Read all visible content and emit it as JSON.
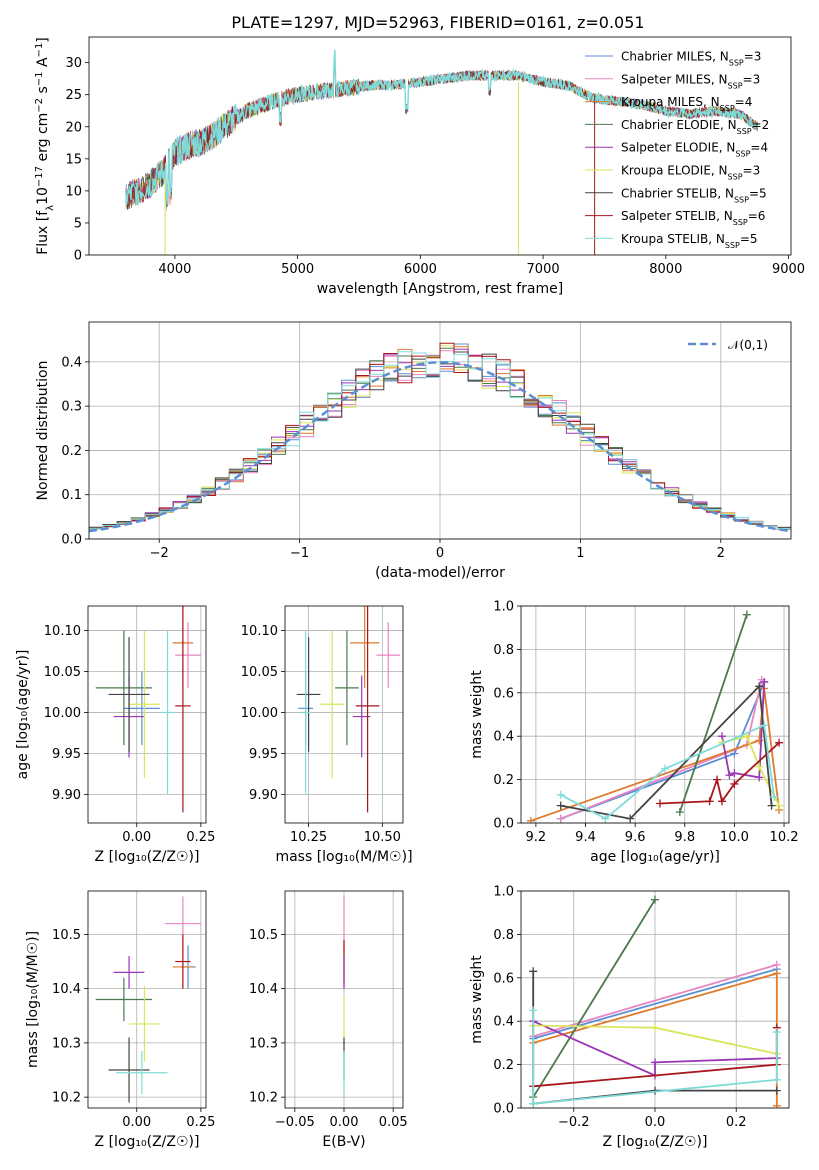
{
  "title": "PLATE=1297, MJD=52963, FIBERID=0161, z=0.051",
  "colors": {
    "Chabrier MILES": "#5b8fd4",
    "Salpeter MILES": "#e985c3",
    "Kroupa MILES": "#e07a2c",
    "Chabrier ELODIE": "#4a7a4c",
    "Salpeter ELODIE": "#9b36b4",
    "Kroupa ELODIE": "#d9e55a",
    "Chabrier STELIB": "#444444",
    "Salpeter STELIB": "#a8171b",
    "Kroupa STELIB": "#7fdbd8"
  },
  "chart_data": [
    {
      "id": "spectrum",
      "type": "line",
      "xlabel": "wavelength [Angstrom, rest frame]",
      "ylabel_parts": [
        "Flux [f",
        "λ",
        "10",
        "−17",
        " erg cm",
        "−2",
        " s",
        "−1",
        " A",
        "−1",
        "]"
      ],
      "xlim": [
        3300,
        9020
      ],
      "ylim": [
        0,
        34
      ],
      "xticks": [
        4000,
        5000,
        6000,
        7000,
        8000,
        9000
      ],
      "yticks": [
        0,
        5,
        10,
        15,
        20,
        25,
        30
      ],
      "grid": false,
      "legend_position": "right",
      "series": [
        {
          "name": "Chabrier MILES",
          "nssp": "3"
        },
        {
          "name": "Salpeter MILES",
          "nssp": "3"
        },
        {
          "name": "Kroupa MILES",
          "nssp": "4"
        },
        {
          "name": "Chabrier ELODIE",
          "nssp": "2"
        },
        {
          "name": "Salpeter ELODIE",
          "nssp": "4"
        },
        {
          "name": "Kroupa ELODIE",
          "nssp": "3"
        },
        {
          "name": "Chabrier STELIB",
          "nssp": "5"
        },
        {
          "name": "Salpeter STELIB",
          "nssp": "6"
        },
        {
          "name": "Kroupa STELIB",
          "nssp": "5"
        }
      ],
      "continuum": {
        "x": [
          3600,
          3700,
          3800,
          3900,
          4000,
          4100,
          4200,
          4300,
          4400,
          4500,
          4600,
          4800,
          5000,
          5200,
          5400,
          5600,
          5800,
          6000,
          6200,
          6400,
          6600,
          6800,
          7000,
          7200,
          7400,
          7600,
          7800,
          8000,
          8200,
          8400,
          8600,
          8750
        ],
        "y": [
          9,
          10,
          11,
          13,
          16,
          17,
          17.5,
          18.5,
          20,
          21.5,
          22.5,
          24,
          25,
          25.5,
          26,
          26.5,
          26.5,
          27,
          27.5,
          28,
          28,
          28,
          27,
          26.5,
          24.5,
          24,
          23.5,
          22.5,
          22,
          22.5,
          22,
          20
        ]
      }
    },
    {
      "id": "residuals",
      "type": "line",
      "xlabel": "(data-model)/error",
      "ylabel": "Normed distribution",
      "xlim": [
        -2.5,
        2.5
      ],
      "ylim": [
        0,
        0.49
      ],
      "xticks": [
        -2,
        -1,
        0,
        1,
        2
      ],
      "yticks": [
        0.0,
        0.1,
        0.2,
        0.3,
        0.4
      ],
      "grid": true,
      "legend_position": "top-right",
      "legend_label": "𝒩(0,1)"
    },
    {
      "id": "age_vs_Z",
      "type": "scatter",
      "xlabel": "Z [log₁₀(Z/Z☉)]",
      "ylabel": "age  [log₁₀(age/yr)]",
      "xlim": [
        -0.19,
        0.27
      ],
      "ylim": [
        9.865,
        10.13
      ],
      "xticks": [
        0.0,
        0.25
      ],
      "xticklabels": [
        "0.00",
        "0.25"
      ],
      "yticks": [
        9.9,
        9.95,
        10.0,
        10.05,
        10.1
      ],
      "grid": true,
      "points": [
        {
          "series": "Chabrier MILES",
          "x": 0.02,
          "xerr": 0.07,
          "y": 10.005,
          "yerr": 0.045
        },
        {
          "series": "Salpeter MILES",
          "x": 0.2,
          "xerr": 0.05,
          "y": 10.07,
          "yerr": 0.04
        },
        {
          "series": "Kroupa MILES",
          "x": 0.18,
          "xerr": 0.04,
          "y": 10.085,
          "yerr": 0.055
        },
        {
          "series": "Chabrier ELODIE",
          "x": -0.05,
          "xerr": 0.11,
          "y": 10.03,
          "yerr": 0.07
        },
        {
          "series": "Salpeter ELODIE",
          "x": -0.03,
          "xerr": 0.06,
          "y": 9.995,
          "yerr": 0.05
        },
        {
          "series": "Kroupa ELODIE",
          "x": 0.03,
          "xerr": 0.06,
          "y": 10.01,
          "yerr": 0.09
        },
        {
          "series": "Chabrier STELIB",
          "x": -0.03,
          "xerr": 0.08,
          "y": 10.022,
          "yerr": 0.07
        },
        {
          "series": "Salpeter STELIB",
          "x": 0.18,
          "xerr": 0.03,
          "y": 10.008,
          "yerr": 0.13
        },
        {
          "series": "Kroupa STELIB",
          "x": 0.12,
          "xerr": 0.03,
          "y": 10.0,
          "yerr": 0.1
        }
      ]
    },
    {
      "id": "age_vs_mass",
      "type": "scatter",
      "xlabel": "mass [log₁₀(M/M☉)]",
      "xlim": [
        10.17,
        10.57
      ],
      "ylim": [
        9.865,
        10.13
      ],
      "xticks": [
        10.25,
        10.5
      ],
      "xticklabels": [
        "10.25",
        "10.50"
      ],
      "yticks": [
        9.9,
        9.95,
        10.0,
        10.05,
        10.1
      ],
      "grid": true,
      "points": [
        {
          "series": "Chabrier MILES",
          "x": 10.24,
          "xerr": 0.025,
          "y": 10.005,
          "yerr": 0.045
        },
        {
          "series": "Salpeter MILES",
          "x": 10.52,
          "xerr": 0.04,
          "y": 10.07,
          "yerr": 0.04
        },
        {
          "series": "Kroupa MILES",
          "x": 10.44,
          "xerr": 0.05,
          "y": 10.085,
          "yerr": 0.055
        },
        {
          "series": "Chabrier ELODIE",
          "x": 10.38,
          "xerr": 0.04,
          "y": 10.03,
          "yerr": 0.07
        },
        {
          "series": "Salpeter ELODIE",
          "x": 10.43,
          "xerr": 0.03,
          "y": 9.995,
          "yerr": 0.05
        },
        {
          "series": "Kroupa ELODIE",
          "x": 10.33,
          "xerr": 0.04,
          "y": 10.01,
          "yerr": 0.09
        },
        {
          "series": "Chabrier STELIB",
          "x": 10.25,
          "xerr": 0.04,
          "y": 10.022,
          "yerr": 0.07
        },
        {
          "series": "Salpeter STELIB",
          "x": 10.45,
          "xerr": 0.04,
          "y": 10.008,
          "yerr": 0.13
        },
        {
          "series": "Kroupa STELIB",
          "x": 10.24,
          "xerr": 0.02,
          "y": 10.0,
          "yerr": 0.1
        }
      ]
    },
    {
      "id": "weight_vs_age",
      "type": "line",
      "xlabel": "age  [log₁₀(age/yr)]",
      "ylabel": "mass weight",
      "xlim": [
        9.14,
        10.22
      ],
      "ylim": [
        0,
        1.0
      ],
      "xticks": [
        9.2,
        9.4,
        9.6,
        9.8,
        10.0,
        10.2
      ],
      "xticklabels": [
        "9.2",
        "9.4",
        "9.6",
        "9.8",
        "10.0",
        "10.2"
      ],
      "yticks": [
        0.0,
        0.2,
        0.4,
        0.6,
        0.8,
        1.0
      ],
      "grid": true,
      "series": [
        {
          "name": "Chabrier MILES",
          "x": [
            9.3,
            10.0,
            10.12
          ],
          "y": [
            0.02,
            0.32,
            0.65
          ]
        },
        {
          "name": "Salpeter MILES",
          "x": [
            9.3,
            10.05,
            10.11
          ],
          "y": [
            0.02,
            0.36,
            0.66
          ]
        },
        {
          "name": "Kroupa MILES",
          "x": [
            9.18,
            10.1,
            10.12,
            10.18
          ],
          "y": [
            0.01,
            0.38,
            0.62,
            0.06
          ]
        },
        {
          "name": "Chabrier ELODIE",
          "x": [
            9.78,
            10.05
          ],
          "y": [
            0.05,
            0.96
          ]
        },
        {
          "name": "Salpeter ELODIE",
          "x": [
            9.95,
            9.98,
            10.0,
            10.1,
            10.12
          ],
          "y": [
            0.4,
            0.22,
            0.23,
            0.21,
            0.65
          ]
        },
        {
          "name": "Kroupa ELODIE",
          "x": [
            9.95,
            10.05,
            10.1,
            10.18
          ],
          "y": [
            0.37,
            0.4,
            0.26,
            0.08
          ]
        },
        {
          "name": "Chabrier STELIB",
          "x": [
            9.3,
            9.58,
            10.1,
            10.15
          ],
          "y": [
            0.08,
            0.02,
            0.63,
            0.08
          ]
        },
        {
          "name": "Salpeter STELIB",
          "x": [
            9.7,
            9.9,
            9.93,
            9.95,
            10.0,
            10.18
          ],
          "y": [
            0.09,
            0.1,
            0.2,
            0.1,
            0.18,
            0.37
          ]
        },
        {
          "name": "Kroupa STELIB",
          "x": [
            9.3,
            9.48,
            9.72,
            10.12,
            10.16
          ],
          "y": [
            0.13,
            0.02,
            0.25,
            0.45,
            0.12
          ]
        }
      ]
    },
    {
      "id": "mass_vs_Z",
      "type": "scatter",
      "xlabel": "Z [log₁₀(Z/Z☉)]",
      "ylabel": "mass [log₁₀(M/M☉)]",
      "xlim": [
        -0.19,
        0.27
      ],
      "ylim": [
        10.18,
        10.58
      ],
      "xticks": [
        0.0,
        0.25
      ],
      "xticklabels": [
        "0.00",
        "0.25"
      ],
      "yticks": [
        10.2,
        10.3,
        10.4,
        10.5
      ],
      "grid": true,
      "points": [
        {
          "series": "Chabrier MILES",
          "x": 0.2,
          "xerr": 0.03,
          "y": 10.44,
          "yerr": 0.04
        },
        {
          "series": "Salpeter MILES",
          "x": 0.18,
          "xerr": 0.07,
          "y": 10.52,
          "yerr": 0.05
        },
        {
          "series": "Kroupa MILES",
          "x": 0.18,
          "xerr": 0.04,
          "y": 10.44,
          "yerr": 0.04
        },
        {
          "series": "Chabrier ELODIE",
          "x": -0.05,
          "xerr": 0.11,
          "y": 10.38,
          "yerr": 0.04
        },
        {
          "series": "Salpeter ELODIE",
          "x": -0.03,
          "xerr": 0.06,
          "y": 10.43,
          "yerr": 0.03
        },
        {
          "series": "Kroupa ELODIE",
          "x": 0.03,
          "xerr": 0.06,
          "y": 10.335,
          "yerr": 0.07
        },
        {
          "series": "Chabrier STELIB",
          "x": -0.03,
          "xerr": 0.08,
          "y": 10.25,
          "yerr": 0.06
        },
        {
          "series": "Salpeter STELIB",
          "x": 0.18,
          "xerr": 0.03,
          "y": 10.45,
          "yerr": 0.05
        },
        {
          "series": "Kroupa STELIB",
          "x": 0.02,
          "xerr": 0.1,
          "y": 10.245,
          "yerr": 0.04
        }
      ]
    },
    {
      "id": "mass_vs_EBV",
      "type": "scatter",
      "xlabel": "E(B-V)",
      "xlim": [
        -0.06,
        0.06
      ],
      "ylim": [
        10.18,
        10.58
      ],
      "xticks": [
        -0.05,
        0.0,
        0.05
      ],
      "xticklabels": [
        "−0.05",
        "0.00",
        "0.05"
      ],
      "yticks": [
        10.2,
        10.3,
        10.4,
        10.5
      ],
      "grid": true,
      "points": [
        {
          "series": "Salpeter MILES",
          "x": 0.0,
          "y": 10.52,
          "yerr": 0.05
        },
        {
          "series": "Kroupa MILES",
          "x": 0.0,
          "y": 10.44,
          "yerr": 0.04
        },
        {
          "series": "Salpeter STELIB",
          "x": 0.0,
          "y": 10.45,
          "yerr": 0.04
        },
        {
          "series": "Salpeter ELODIE",
          "x": 0.0,
          "y": 10.43,
          "yerr": 0.03
        },
        {
          "series": "Kroupa ELODIE",
          "x": 0.0,
          "y": 10.335,
          "yerr": 0.05
        },
        {
          "series": "Chabrier STELIB",
          "x": 0.0,
          "y": 10.27,
          "yerr": 0.04
        },
        {
          "series": "Kroupa STELIB",
          "x": 0.0,
          "y": 10.245,
          "yerr": 0.04
        }
      ]
    },
    {
      "id": "weight_vs_Z",
      "type": "line",
      "xlabel": "Z [log₁₀(Z/Z☉)]",
      "ylabel": "mass weight",
      "xlim": [
        -0.33,
        0.33
      ],
      "ylim": [
        0,
        1.0
      ],
      "xticks": [
        -0.2,
        0.0,
        0.2
      ],
      "xticklabels": [
        "−0.2",
        "0.0",
        "0.2"
      ],
      "yticks": [
        0.0,
        0.2,
        0.4,
        0.6,
        0.8,
        1.0
      ],
      "grid": true,
      "series": [
        {
          "name": "Chabrier MILES",
          "x": [
            -0.3,
            0.3
          ],
          "y": [
            0.32,
            0.64
          ]
        },
        {
          "name": "Salpeter MILES",
          "x": [
            -0.3,
            0.3
          ],
          "y": [
            0.33,
            0.66
          ]
        },
        {
          "name": "Kroupa MILES",
          "x": [
            -0.3,
            0.3,
            0.3
          ],
          "y": [
            0.3,
            0.62,
            0.01
          ]
        },
        {
          "name": "Chabrier ELODIE",
          "x": [
            -0.3,
            0.0
          ],
          "y": [
            0.05,
            0.96
          ]
        },
        {
          "name": "Salpeter ELODIE",
          "x": [
            -0.3,
            0.0,
            0.0,
            0.3
          ],
          "y": [
            0.4,
            0.15,
            0.21,
            0.23
          ]
        },
        {
          "name": "Kroupa ELODIE",
          "x": [
            -0.3,
            0.0,
            0.3
          ],
          "y": [
            0.38,
            0.37,
            0.25
          ]
        },
        {
          "name": "Chabrier STELIB",
          "x": [
            -0.3,
            -0.3,
            0.0,
            0.3
          ],
          "y": [
            0.63,
            0.02,
            0.08,
            0.08
          ]
        },
        {
          "name": "Salpeter STELIB",
          "x": [
            -0.3,
            0.3,
            0.3
          ],
          "y": [
            0.1,
            0.2,
            0.37
          ]
        },
        {
          "name": "Kroupa STELIB",
          "x": [
            -0.3,
            -0.3,
            0.3,
            0.3
          ],
          "y": [
            0.45,
            0.02,
            0.13,
            0.35
          ]
        }
      ]
    }
  ]
}
